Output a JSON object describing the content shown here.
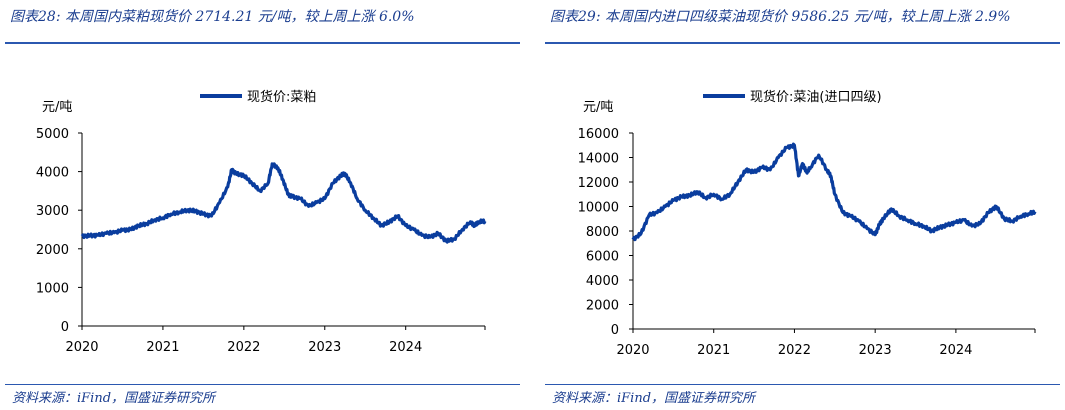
{
  "panels": [
    {
      "title": "图表28: 本周国内菜粕现货价 2714.21 元/吨，较上周上涨 6.0%",
      "source": "资料来源：iFind，国盛证券研究所"
    },
    {
      "title": "图表29: 本周国内进口四级菜油现货价 9586.25 元/吨，较上周上涨 2.9%",
      "source": "资料来源：iFind，国盛证券研究所"
    }
  ],
  "chart_data": [
    {
      "type": "line",
      "ylabel": "元/吨",
      "ylim": [
        0,
        5000
      ],
      "yticks": [
        0,
        1000,
        2000,
        3000,
        4000,
        5000
      ],
      "xlim": [
        2020.0,
        2024.98
      ],
      "xticks": [
        "2020",
        "2021",
        "2022",
        "2023",
        "2024"
      ],
      "legend_position": "top-center",
      "grid": false,
      "series": [
        {
          "name": "现货价:菜粕",
          "color": "#0a3d9e",
          "x": [
            2020.0,
            2020.1,
            2020.2,
            2020.3,
            2020.4,
            2020.5,
            2020.6,
            2020.7,
            2020.8,
            2020.9,
            2021.0,
            2021.1,
            2021.2,
            2021.3,
            2021.4,
            2021.5,
            2021.6,
            2021.7,
            2021.8,
            2021.85,
            2021.9,
            2022.0,
            2022.1,
            2022.2,
            2022.3,
            2022.35,
            2022.42,
            2022.48,
            2022.55,
            2022.6,
            2022.7,
            2022.8,
            2022.9,
            2023.0,
            2023.1,
            2023.2,
            2023.25,
            2023.32,
            2023.4,
            2023.5,
            2023.6,
            2023.7,
            2023.8,
            2023.9,
            2024.0,
            2024.1,
            2024.2,
            2024.3,
            2024.4,
            2024.5,
            2024.6,
            2024.7,
            2024.8,
            2024.85,
            2024.9,
            2024.98
          ],
          "values": [
            2330,
            2340,
            2350,
            2400,
            2420,
            2480,
            2500,
            2600,
            2650,
            2750,
            2800,
            2900,
            2950,
            3000,
            2980,
            2900,
            2850,
            3200,
            3600,
            4050,
            3950,
            3900,
            3700,
            3500,
            3700,
            4200,
            4100,
            3800,
            3400,
            3350,
            3300,
            3100,
            3200,
            3300,
            3700,
            3900,
            3950,
            3700,
            3300,
            3000,
            2800,
            2600,
            2700,
            2850,
            2600,
            2500,
            2350,
            2300,
            2400,
            2200,
            2250,
            2500,
            2700,
            2600,
            2700,
            2714
          ]
        }
      ]
    },
    {
      "type": "line",
      "ylabel": "元/吨",
      "ylim": [
        0,
        16000
      ],
      "yticks": [
        0,
        2000,
        4000,
        6000,
        8000,
        10000,
        12000,
        14000,
        16000
      ],
      "xlim": [
        2020.0,
        2024.98
      ],
      "xticks": [
        "2020",
        "2021",
        "2022",
        "2023",
        "2024"
      ],
      "legend_position": "top-center",
      "grid": false,
      "series": [
        {
          "name": "现货价:菜油(进口四级)",
          "color": "#0a3d9e",
          "x": [
            2020.0,
            2020.1,
            2020.2,
            2020.3,
            2020.4,
            2020.5,
            2020.6,
            2020.7,
            2020.8,
            2020.9,
            2021.0,
            2021.1,
            2021.2,
            2021.3,
            2021.4,
            2021.5,
            2021.6,
            2021.7,
            2021.8,
            2021.9,
            2022.0,
            2022.05,
            2022.1,
            2022.15,
            2022.2,
            2022.3,
            2022.4,
            2022.45,
            2022.5,
            2022.6,
            2022.7,
            2022.8,
            2022.9,
            2023.0,
            2023.05,
            2023.1,
            2023.2,
            2023.3,
            2023.4,
            2023.5,
            2023.6,
            2023.7,
            2023.8,
            2023.9,
            2024.0,
            2024.1,
            2024.2,
            2024.3,
            2024.4,
            2024.5,
            2024.6,
            2024.7,
            2024.8,
            2024.9,
            2024.98
          ],
          "values": [
            7300,
            7800,
            9300,
            9500,
            10000,
            10500,
            10800,
            10900,
            11200,
            10700,
            11000,
            10600,
            11000,
            12000,
            13000,
            12800,
            13200,
            13000,
            14000,
            14800,
            15000,
            12500,
            13500,
            12800,
            13200,
            14200,
            13000,
            12500,
            11000,
            9500,
            9200,
            8800,
            8200,
            7700,
            8500,
            9000,
            9800,
            9200,
            8900,
            8600,
            8400,
            8000,
            8300,
            8500,
            8700,
            8900,
            8400,
            8600,
            9500,
            10000,
            9000,
            8800,
            9200,
            9400,
            9586
          ]
        }
      ]
    }
  ]
}
